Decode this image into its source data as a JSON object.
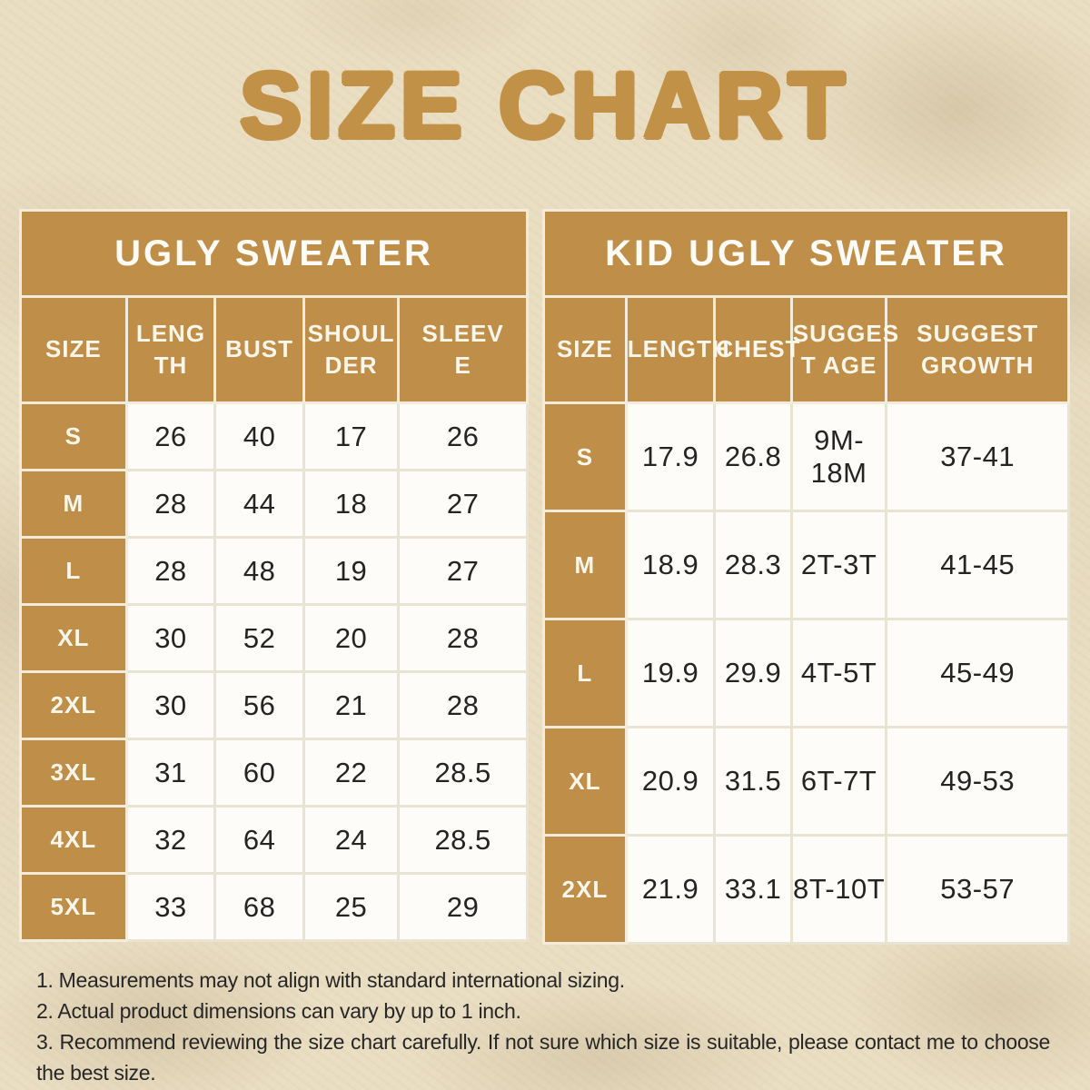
{
  "title": "SIZE CHART",
  "colors": {
    "accent_tan": "#bf8e48",
    "title_tan": "#c29148",
    "background_beige": "#e9ddc2",
    "cell_white": "#fdfcf8",
    "grid_cream": "#f3ecda",
    "text_dark": "#242424"
  },
  "tables": [
    {
      "title": "UGLY SWEATER",
      "columns": [
        "SIZE",
        "LENG\nTH",
        "BUST",
        "SHOUL\nDER",
        "SLEEV\nE"
      ],
      "rows": [
        [
          "S",
          "26",
          "40",
          "17",
          "26"
        ],
        [
          "M",
          "28",
          "44",
          "18",
          "27"
        ],
        [
          "L",
          "28",
          "48",
          "19",
          "27"
        ],
        [
          "XL",
          "30",
          "52",
          "20",
          "28"
        ],
        [
          "2XL",
          "30",
          "56",
          "21",
          "28"
        ],
        [
          "3XL",
          "31",
          "60",
          "22",
          "28.5"
        ],
        [
          "4XL",
          "32",
          "64",
          "24",
          "28.5"
        ],
        [
          "5XL",
          "33",
          "68",
          "25",
          "29"
        ]
      ]
    },
    {
      "title": "KID UGLY SWEATER",
      "columns": [
        "SIZE",
        "LENGTH",
        "CHEST",
        "SUGGES\nT AGE",
        "SUGGEST\nGROWTH"
      ],
      "rows": [
        [
          "S",
          "17.9",
          "26.8",
          "9M-18M",
          "37-41"
        ],
        [
          "M",
          "18.9",
          "28.3",
          "2T-3T",
          "41-45"
        ],
        [
          "L",
          "19.9",
          "29.9",
          "4T-5T",
          "45-49"
        ],
        [
          "XL",
          "20.9",
          "31.5",
          "6T-7T",
          "49-53"
        ],
        [
          "2XL",
          "21.9",
          "33.1",
          "8T-10T",
          "53-57"
        ]
      ]
    }
  ],
  "notes": [
    "1. Measurements may not align with standard international sizing.",
    "2. Actual product dimensions can vary by up to 1 inch.",
    "3. Recommend reviewing the size chart carefully. If not sure which size is suitable, please contact me to choose the best size."
  ]
}
